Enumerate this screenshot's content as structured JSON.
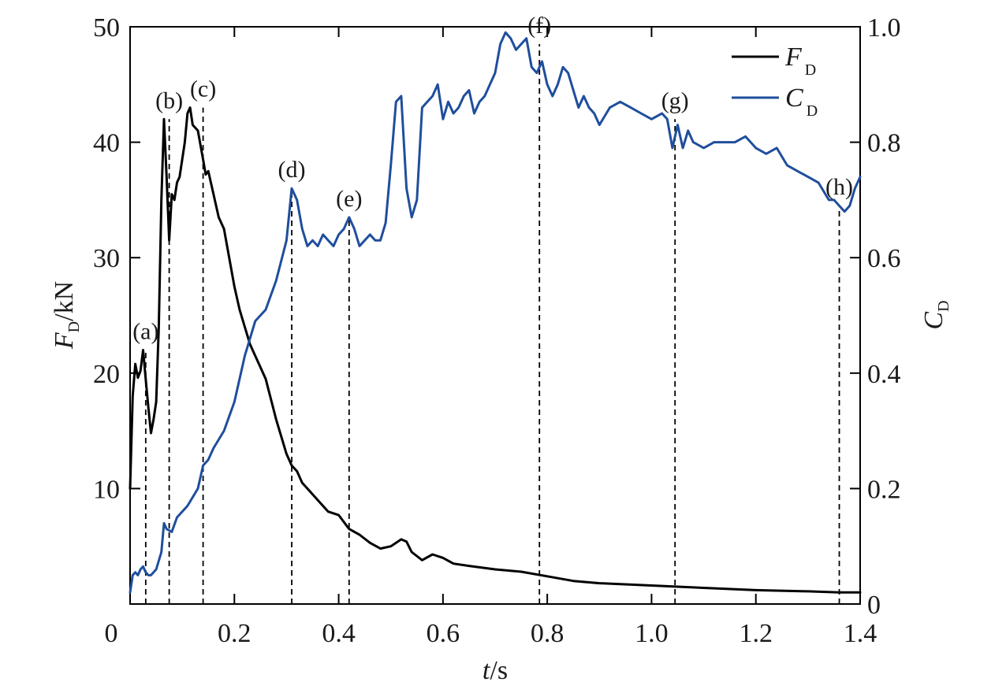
{
  "chart_data": {
    "type": "line",
    "xlabel": {
      "var": "t",
      "unit": "/s"
    },
    "ylabel_left": {
      "var": "F",
      "sub": "D",
      "unit": "/kN"
    },
    "ylabel_right": {
      "var": "C",
      "sub": "D"
    },
    "xlim": [
      0,
      1.4
    ],
    "ylim_left": [
      0,
      50
    ],
    "ylim_right": [
      0,
      1.0
    ],
    "x_ticks": [
      0,
      0.2,
      0.4,
      0.6,
      0.8,
      1.0,
      1.2,
      1.4
    ],
    "x_tick_labels": [
      "0",
      "0.2",
      "0.4",
      "0.6",
      "0.8",
      "1.0",
      "1.2",
      "1.4"
    ],
    "y_left_ticks": [
      10,
      20,
      30,
      40,
      50
    ],
    "y_left_tick_labels": [
      "10",
      "20",
      "30",
      "40",
      "50"
    ],
    "y_right_ticks": [
      0,
      0.2,
      0.4,
      0.6,
      0.8,
      1.0
    ],
    "y_right_tick_labels": [
      "0",
      "0.2",
      "0.4",
      "0.6",
      "0.8",
      "1.0"
    ],
    "grid": false,
    "legend_position": "top-right",
    "series": [
      {
        "name": "F_D",
        "legend_var": "F",
        "legend_sub": "D",
        "axis": "left",
        "color": "#000000",
        "x": [
          0.0,
          0.005,
          0.01,
          0.015,
          0.02,
          0.025,
          0.03,
          0.035,
          0.04,
          0.045,
          0.05,
          0.055,
          0.06,
          0.065,
          0.07,
          0.075,
          0.08,
          0.085,
          0.09,
          0.095,
          0.1,
          0.105,
          0.11,
          0.115,
          0.12,
          0.13,
          0.14,
          0.145,
          0.15,
          0.155,
          0.16,
          0.17,
          0.18,
          0.19,
          0.2,
          0.21,
          0.22,
          0.23,
          0.24,
          0.25,
          0.26,
          0.28,
          0.3,
          0.31,
          0.32,
          0.33,
          0.34,
          0.36,
          0.38,
          0.4,
          0.42,
          0.44,
          0.46,
          0.48,
          0.5,
          0.52,
          0.53,
          0.54,
          0.56,
          0.58,
          0.6,
          0.62,
          0.65,
          0.7,
          0.75,
          0.8,
          0.85,
          0.9,
          1.0,
          1.1,
          1.2,
          1.3,
          1.36,
          1.4
        ],
        "y": [
          10.0,
          18.0,
          20.8,
          19.6,
          20.2,
          22.0,
          19.5,
          17.0,
          14.8,
          16.0,
          17.5,
          24.0,
          35.0,
          42.0,
          37.0,
          31.5,
          35.5,
          35.0,
          36.5,
          37.0,
          38.5,
          40.0,
          42.5,
          43.0,
          41.5,
          41.0,
          38.5,
          37.2,
          37.5,
          36.5,
          35.5,
          33.5,
          32.5,
          30.0,
          27.5,
          25.5,
          24.0,
          22.5,
          21.5,
          20.5,
          19.5,
          16.0,
          13.0,
          12.0,
          11.5,
          10.5,
          10.0,
          9.0,
          8.0,
          7.7,
          6.5,
          6.0,
          5.3,
          4.8,
          5.0,
          5.6,
          5.4,
          4.5,
          3.8,
          4.3,
          4.0,
          3.5,
          3.3,
          3.0,
          2.8,
          2.4,
          2.0,
          1.8,
          1.6,
          1.4,
          1.2,
          1.1,
          1.0,
          1.0
        ]
      },
      {
        "name": "C_D",
        "legend_var": "C",
        "legend_sub": "D",
        "axis": "right",
        "color": "#1f4e9c",
        "x": [
          0.0,
          0.005,
          0.01,
          0.015,
          0.02,
          0.025,
          0.03,
          0.035,
          0.04,
          0.05,
          0.06,
          0.065,
          0.07,
          0.08,
          0.09,
          0.1,
          0.11,
          0.13,
          0.14,
          0.15,
          0.16,
          0.18,
          0.2,
          0.22,
          0.24,
          0.26,
          0.28,
          0.3,
          0.31,
          0.32,
          0.33,
          0.34,
          0.35,
          0.36,
          0.37,
          0.38,
          0.39,
          0.4,
          0.41,
          0.42,
          0.43,
          0.44,
          0.45,
          0.46,
          0.47,
          0.48,
          0.49,
          0.5,
          0.51,
          0.52,
          0.53,
          0.54,
          0.55,
          0.56,
          0.57,
          0.58,
          0.59,
          0.6,
          0.61,
          0.62,
          0.63,
          0.64,
          0.65,
          0.66,
          0.67,
          0.68,
          0.69,
          0.7,
          0.71,
          0.72,
          0.73,
          0.74,
          0.75,
          0.76,
          0.77,
          0.78,
          0.79,
          0.8,
          0.81,
          0.82,
          0.83,
          0.84,
          0.85,
          0.86,
          0.87,
          0.88,
          0.89,
          0.9,
          0.92,
          0.94,
          0.96,
          0.98,
          1.0,
          1.02,
          1.03,
          1.04,
          1.05,
          1.06,
          1.07,
          1.08,
          1.1,
          1.12,
          1.14,
          1.16,
          1.18,
          1.2,
          1.22,
          1.24,
          1.26,
          1.28,
          1.3,
          1.32,
          1.34,
          1.35,
          1.36,
          1.37,
          1.38,
          1.39,
          1.4
        ],
        "y": [
          0.02,
          0.05,
          0.055,
          0.05,
          0.06,
          0.065,
          0.055,
          0.05,
          0.05,
          0.06,
          0.09,
          0.14,
          0.13,
          0.125,
          0.15,
          0.16,
          0.17,
          0.2,
          0.24,
          0.25,
          0.27,
          0.3,
          0.35,
          0.43,
          0.49,
          0.51,
          0.56,
          0.63,
          0.72,
          0.7,
          0.65,
          0.62,
          0.63,
          0.62,
          0.64,
          0.63,
          0.62,
          0.64,
          0.65,
          0.67,
          0.65,
          0.62,
          0.63,
          0.64,
          0.63,
          0.63,
          0.66,
          0.76,
          0.87,
          0.88,
          0.72,
          0.67,
          0.7,
          0.86,
          0.87,
          0.88,
          0.9,
          0.84,
          0.87,
          0.85,
          0.86,
          0.88,
          0.89,
          0.85,
          0.87,
          0.88,
          0.9,
          0.92,
          0.97,
          0.99,
          0.98,
          0.96,
          0.97,
          0.98,
          0.93,
          0.92,
          0.94,
          0.9,
          0.88,
          0.9,
          0.93,
          0.92,
          0.89,
          0.86,
          0.88,
          0.86,
          0.85,
          0.83,
          0.86,
          0.87,
          0.86,
          0.85,
          0.84,
          0.85,
          0.84,
          0.79,
          0.83,
          0.79,
          0.82,
          0.8,
          0.79,
          0.8,
          0.8,
          0.8,
          0.81,
          0.79,
          0.78,
          0.79,
          0.76,
          0.75,
          0.74,
          0.73,
          0.7,
          0.7,
          0.69,
          0.68,
          0.69,
          0.72,
          0.74
        ]
      }
    ],
    "events": [
      {
        "label": "(a)",
        "t": 0.03,
        "peak_y": 22.0,
        "axis": "left"
      },
      {
        "label": "(b)",
        "t": 0.075,
        "peak_y": 42.0,
        "axis": "left"
      },
      {
        "label": "(c)",
        "t": 0.14,
        "peak_y": 43.0,
        "axis": "left"
      },
      {
        "label": "(d)",
        "t": 0.31,
        "peak_y": 0.72,
        "axis": "right"
      },
      {
        "label": "(e)",
        "t": 0.42,
        "peak_y": 0.67,
        "axis": "right"
      },
      {
        "label": "(f)",
        "t": 0.785,
        "peak_y": 0.97,
        "axis": "right"
      },
      {
        "label": "(g)",
        "t": 1.045,
        "peak_y": 0.84,
        "axis": "right"
      },
      {
        "label": "(h)",
        "t": 1.36,
        "peak_y": 0.69,
        "axis": "right"
      }
    ]
  }
}
